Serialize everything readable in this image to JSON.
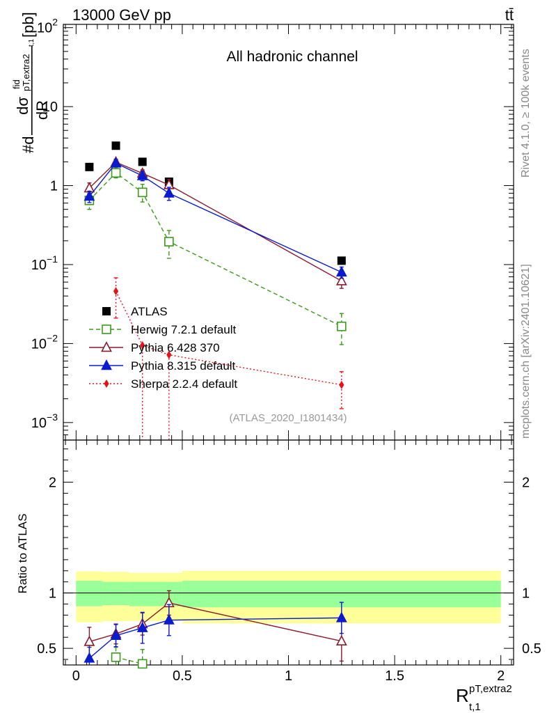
{
  "header": {
    "energy_label": "13000 GeV pp",
    "process_label": "tt̄"
  },
  "side_labels": {
    "rivet": "Rivet 4.1.0, ≥ 100k events",
    "mcplots": "mcplots.cern.ch [arXiv:2401.10621]"
  },
  "chart_data": [
    {
      "type": "scatter",
      "title": "All hadronic channel",
      "analysis_label": "(ATLAS_2020_I1801434)",
      "ylabel_prefix": "#d",
      "ylabel_num": "dσ",
      "ylabel_sup": "fid",
      "ylabel_sub": "pT,extra2",
      "ylabel_sub2": "t,1",
      "ylabel_den": "dR",
      "ylabel_unit": "[pb]",
      "yscale": "log",
      "ylim": [
        0.0006,
        110
      ],
      "xlim": [
        -0.06,
        2.06
      ],
      "ytick_labels": [
        {
          "base": "10",
          "exp": "2",
          "value": 100
        },
        {
          "base": "10",
          "exp": "",
          "value": 10
        },
        {
          "base": "1",
          "exp": "",
          "value": 1
        },
        {
          "base": "10",
          "exp": "−1",
          "value": 0.1
        },
        {
          "base": "10",
          "exp": "−2",
          "value": 0.01
        },
        {
          "base": "10",
          "exp": "−3",
          "value": 0.001
        }
      ],
      "series": [
        {
          "name": "ATLAS",
          "color": "#000000",
          "marker": "square-filled",
          "line": "none",
          "x": [
            0.0625,
            0.1875,
            0.3125,
            0.4375,
            1.25
          ],
          "y": [
            1.72,
            3.2,
            2.0,
            1.12,
            0.112
          ],
          "err_lo": [
            0,
            0,
            0,
            0,
            0
          ],
          "err_hi": [
            0,
            0,
            0,
            0,
            0
          ]
        },
        {
          "name": "Herwig 7.2.1 default",
          "color": "#3a9a1a",
          "marker": "square-open",
          "line": "dashed",
          "x": [
            0.0625,
            0.1875,
            0.3125,
            0.4375,
            1.25
          ],
          "y": [
            0.65,
            1.45,
            0.82,
            0.195,
            0.0165
          ],
          "err_lo": [
            0.15,
            0.2,
            0.2,
            0.075,
            0.0068
          ],
          "err_hi": [
            0.15,
            0.25,
            0.22,
            0.075,
            0.0075
          ]
        },
        {
          "name": "Pythia 6.428 370",
          "color": "#8b1a2a",
          "marker": "triangle-open",
          "line": "solid",
          "x": [
            0.0625,
            0.1875,
            0.3125,
            0.4375,
            1.25
          ],
          "y": [
            0.93,
            1.98,
            1.43,
            1.02,
            0.062
          ],
          "err_lo": [
            0.15,
            0.18,
            0.15,
            0.18,
            0.012
          ],
          "err_hi": [
            0.15,
            0.18,
            0.15,
            0.18,
            0.012
          ]
        },
        {
          "name": "Pythia 8.315 default",
          "color": "#0a1acf",
          "marker": "triangle-filled",
          "line": "solid",
          "x": [
            0.0625,
            0.1875,
            0.3125,
            0.4375,
            1.25
          ],
          "y": [
            0.73,
            1.92,
            1.33,
            0.8,
            0.08
          ],
          "err_lo": [
            0.12,
            0.18,
            0.18,
            0.15,
            0.013
          ],
          "err_hi": [
            0.12,
            0.18,
            0.18,
            0.15,
            0.013
          ]
        },
        {
          "name": "Sherpa 2.2.4 default",
          "color": "#e8101a",
          "marker": "diamond-filled",
          "line": "dotted",
          "x": [
            0.1875,
            0.3125,
            0.4375,
            1.25
          ],
          "y": [
            0.046,
            0.0095,
            0.0072,
            0.003
          ],
          "err_lo": [
            0.025,
            0.0095,
            0.0072,
            0.0015
          ],
          "err_hi": [
            0.022,
            0.0,
            0.0,
            0.0014
          ]
        }
      ]
    },
    {
      "type": "scatter",
      "ylabel": "Ratio to ATLAS",
      "xlabel_base": "R",
      "xlabel_sup": "pT,extra2",
      "xlabel_sub": "t,1",
      "ylim": [
        0.35,
        2.38
      ],
      "xlim": [
        -0.06,
        2.06
      ],
      "xtick_labels": [
        {
          "label": "0",
          "value": 0
        },
        {
          "label": "0.5",
          "value": 0.5
        },
        {
          "label": "1",
          "value": 1
        },
        {
          "label": "1.5",
          "value": 1.5
        },
        {
          "label": "2",
          "value": 2
        }
      ],
      "ytick_labels": [
        {
          "label": "0.5",
          "value": 0.5
        },
        {
          "label": "1",
          "value": 1
        },
        {
          "label": "2",
          "value": 2
        }
      ],
      "bands": {
        "edges": [
          0,
          0.125,
          0.25,
          0.5,
          2.0
        ],
        "outer_lo": [
          0.735,
          0.745,
          0.748,
          0.725
        ],
        "outer_hi": [
          1.195,
          1.19,
          1.18,
          1.2
        ],
        "inner_lo": [
          0.88,
          0.89,
          0.88,
          0.87
        ],
        "inner_hi": [
          1.11,
          1.1,
          1.1,
          1.11
        ]
      },
      "series": [
        {
          "name": "Herwig 7.2.1 default",
          "color": "#3a9a1a",
          "marker": "square-open",
          "line": "dashed",
          "x": [
            0.1875,
            0.3125
          ],
          "y": [
            0.42,
            0.36
          ],
          "err_lo": [
            0.07,
            0.05
          ],
          "err_hi": [
            0.09,
            0.13
          ]
        },
        {
          "name": "Pythia 6.428 370",
          "color": "#8b1a2a",
          "marker": "triangle-open",
          "line": "solid",
          "x": [
            0.0625,
            0.1875,
            0.3125,
            0.4375,
            1.25
          ],
          "y": [
            0.56,
            0.63,
            0.72,
            0.91,
            0.565
          ],
          "err_lo": [
            0.13,
            0.09,
            0.1,
            0.11,
            0.18
          ],
          "err_hi": [
            0.13,
            0.09,
            0.1,
            0.11,
            0.18
          ]
        },
        {
          "name": "Pythia 8.315 default",
          "color": "#0a1acf",
          "marker": "triangle-filled",
          "line": "solid",
          "x": [
            0.0625,
            0.1875,
            0.3125,
            0.4375,
            1.25
          ],
          "y": [
            0.41,
            0.615,
            0.685,
            0.755,
            0.775
          ],
          "err_lo": [
            0.1,
            0.1,
            0.14,
            0.14,
            0.14
          ],
          "err_hi": [
            0.1,
            0.1,
            0.14,
            0.14,
            0.14
          ]
        }
      ]
    }
  ]
}
